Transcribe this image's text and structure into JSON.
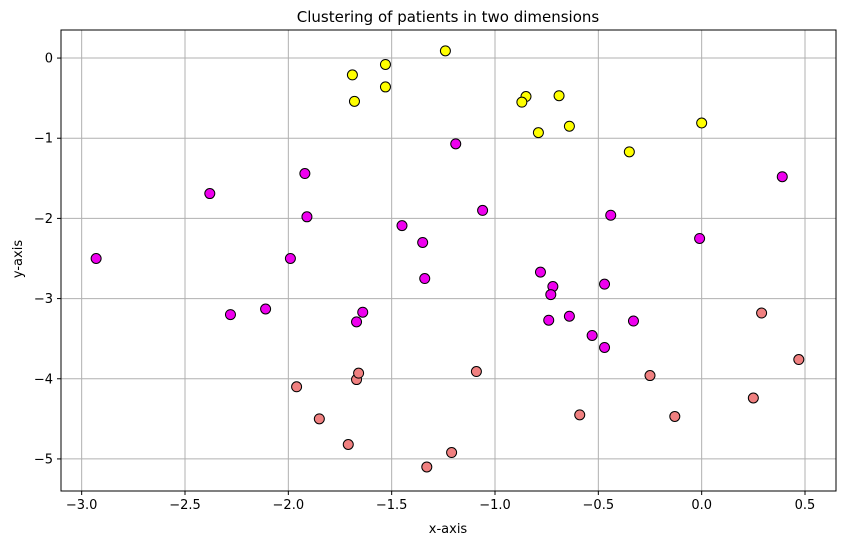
{
  "chart_data": {
    "type": "scatter",
    "title": "Clustering of patients in two dimensions",
    "xlabel": "x-axis",
    "ylabel": "y-axis",
    "xlim": [
      -3.1,
      0.65
    ],
    "ylim": [
      -5.4,
      0.35
    ],
    "xticks": [
      -3.0,
      -2.5,
      -2.0,
      -1.5,
      -1.0,
      -0.5,
      0.0,
      0.5
    ],
    "xtick_labels": [
      "−3.0",
      "−2.5",
      "−2.0",
      "−1.5",
      "−1.0",
      "−0.5",
      "0.0",
      "0.5"
    ],
    "yticks": [
      0,
      -1,
      -2,
      -3,
      -4,
      -5
    ],
    "ytick_labels": [
      "0",
      "−1",
      "−2",
      "−3",
      "−4",
      "−5"
    ],
    "grid": true,
    "legend": "none",
    "series": [
      {
        "color": "#ffff00",
        "points": [
          [
            -1.24,
            0.09
          ],
          [
            -1.53,
            -0.08
          ],
          [
            -1.69,
            -0.21
          ],
          [
            -1.53,
            -0.36
          ],
          [
            -1.68,
            -0.54
          ],
          [
            -0.85,
            -0.48
          ],
          [
            -0.87,
            -0.55
          ],
          [
            -0.69,
            -0.47
          ],
          [
            -0.79,
            -0.93
          ],
          [
            -0.64,
            -0.85
          ],
          [
            0.0,
            -0.81
          ],
          [
            -0.35,
            -1.17
          ]
        ]
      },
      {
        "color": "#ee00ee",
        "points": [
          [
            -1.19,
            -1.07
          ],
          [
            -1.92,
            -1.44
          ],
          [
            -2.38,
            -1.69
          ],
          [
            -1.91,
            -1.98
          ],
          [
            -1.06,
            -1.9
          ],
          [
            -1.45,
            -2.09
          ],
          [
            -1.35,
            -2.3
          ],
          [
            -0.44,
            -1.96
          ],
          [
            0.39,
            -1.48
          ],
          [
            -0.01,
            -2.25
          ],
          [
            -2.93,
            -2.5
          ],
          [
            -1.99,
            -2.5
          ],
          [
            -1.34,
            -2.75
          ],
          [
            -0.78,
            -2.67
          ],
          [
            -0.72,
            -2.85
          ],
          [
            -0.73,
            -2.95
          ],
          [
            -0.47,
            -2.82
          ],
          [
            -2.28,
            -3.2
          ],
          [
            -2.11,
            -3.13
          ],
          [
            -1.64,
            -3.17
          ],
          [
            -1.67,
            -3.29
          ],
          [
            -0.74,
            -3.27
          ],
          [
            -0.64,
            -3.22
          ],
          [
            -0.33,
            -3.28
          ],
          [
            -0.53,
            -3.46
          ],
          [
            -0.47,
            -3.61
          ]
        ]
      },
      {
        "color": "#f08080",
        "points": [
          [
            -1.96,
            -4.1
          ],
          [
            -1.67,
            -4.01
          ],
          [
            -1.66,
            -3.93
          ],
          [
            -1.09,
            -3.91
          ],
          [
            -1.85,
            -4.5
          ],
          [
            -1.71,
            -4.82
          ],
          [
            -1.21,
            -4.92
          ],
          [
            -1.33,
            -5.1
          ],
          [
            -0.59,
            -4.45
          ],
          [
            -0.25,
            -3.96
          ],
          [
            -0.13,
            -4.47
          ],
          [
            0.25,
            -4.24
          ],
          [
            0.29,
            -3.18
          ],
          [
            0.47,
            -3.76
          ]
        ]
      }
    ]
  }
}
